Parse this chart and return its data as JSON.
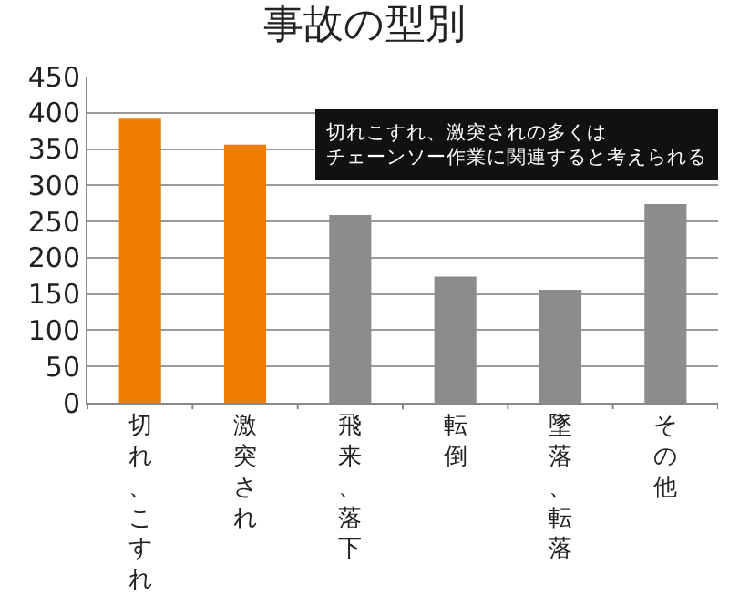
{
  "chart_data": {
    "type": "bar",
    "title": "事故の型別",
    "categories": [
      "切れ、こすれ",
      "激突され",
      "飛来、落下",
      "転倒",
      "墜落、転落",
      "その他"
    ],
    "values": [
      392,
      356,
      259,
      174,
      156,
      274
    ],
    "colors": [
      "#f07c00",
      "#f07c00",
      "#8c8c8c",
      "#8c8c8c",
      "#8c8c8c",
      "#8c8c8c"
    ],
    "ylim": [
      0,
      450
    ],
    "yticks": [
      0,
      50,
      100,
      150,
      200,
      250,
      300,
      350,
      400,
      450
    ],
    "grid": "y",
    "annotations": [
      "切れこすれ、激突されの多くはチェーンソー作業に関連すると考えられる"
    ]
  }
}
